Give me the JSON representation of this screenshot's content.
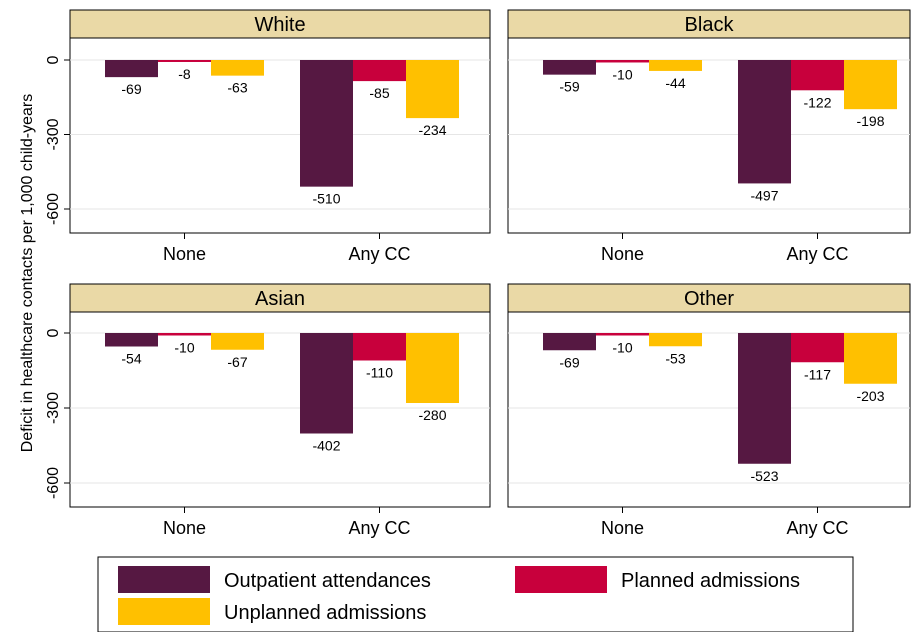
{
  "chart_data": {
    "type": "bar",
    "ylabel": "Deficit in healthcare contacts per 1,000 child-years",
    "ylim": [
      -670,
      80
    ],
    "yticks": [
      0,
      -300,
      -600
    ],
    "categories": [
      "None",
      "Any CC"
    ],
    "series_names": [
      "Outpatient attendances",
      "Planned admissions",
      "Unplanned admissions"
    ],
    "colors": {
      "outpatient": "#561842",
      "planned": "#c8003c",
      "unplanned": "#ffc000",
      "panel_header": "#ead9a6"
    },
    "panels": [
      {
        "title": "White",
        "series": [
          {
            "name": "Outpatient attendances",
            "values": [
              -69,
              -510
            ]
          },
          {
            "name": "Planned admissions",
            "values": [
              -8,
              -85
            ]
          },
          {
            "name": "Unplanned admissions",
            "values": [
              -63,
              -234
            ]
          }
        ]
      },
      {
        "title": "Black",
        "series": [
          {
            "name": "Outpatient attendances",
            "values": [
              -59,
              -497
            ]
          },
          {
            "name": "Planned admissions",
            "values": [
              -10,
              -122
            ]
          },
          {
            "name": "Unplanned admissions",
            "values": [
              -44,
              -198
            ]
          }
        ]
      },
      {
        "title": "Asian",
        "series": [
          {
            "name": "Outpatient attendances",
            "values": [
              -54,
              -402
            ]
          },
          {
            "name": "Planned admissions",
            "values": [
              -10,
              -110
            ]
          },
          {
            "name": "Unplanned admissions",
            "values": [
              -67,
              -280
            ]
          }
        ]
      },
      {
        "title": "Other",
        "series": [
          {
            "name": "Outpatient attendances",
            "values": [
              -69,
              -523
            ]
          },
          {
            "name": "Planned admissions",
            "values": [
              -10,
              -117
            ]
          },
          {
            "name": "Unplanned admissions",
            "values": [
              -53,
              -203
            ]
          }
        ]
      }
    ],
    "legend": {
      "placement": "bottom",
      "items": [
        "Outpatient attendances",
        "Planned admissions",
        "Unplanned admissions"
      ]
    }
  }
}
